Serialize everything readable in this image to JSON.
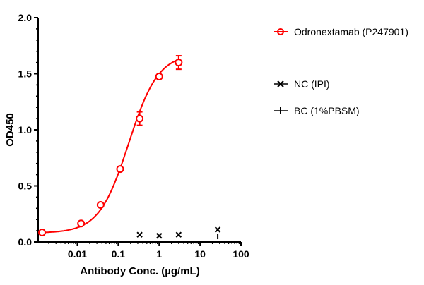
{
  "chart_data": {
    "type": "line",
    "xlabel": "Antibody Conc. (µg/mL)",
    "ylabel": "OD450",
    "xscale": "log",
    "xlim": [
      0.0011,
      100
    ],
    "ylim": [
      0,
      2.0
    ],
    "xticks": [
      "0.01",
      "0.1",
      "1",
      "10",
      "100"
    ],
    "xtick_values": [
      0.01,
      0.1,
      1,
      10,
      100
    ],
    "yticks": [
      "0.0",
      "0.5",
      "1.0",
      "1.5",
      "2.0"
    ],
    "ytick_values": [
      0,
      0.5,
      1.0,
      1.5,
      2.0
    ],
    "grid": false,
    "legend_position": "right",
    "series": [
      {
        "name": "Odronextamab (P247901)",
        "color": "#ff0000",
        "marker": "circle",
        "fit": "sigmoidal curve",
        "x": [
          0.00137,
          0.0123,
          0.037,
          0.111,
          0.333,
          1,
          3
        ],
        "y": [
          0.085,
          0.165,
          0.33,
          0.65,
          1.1,
          1.475,
          1.6
        ],
        "err": [
          0.01,
          0.01,
          0.01,
          0.01,
          0.06,
          0.02,
          0.06
        ]
      },
      {
        "name": "NC (IPI)",
        "color": "#000000",
        "marker": "x",
        "x": [
          0.333,
          1,
          3,
          27
        ],
        "y": [
          0.065,
          0.055,
          0.065,
          0.11
        ]
      },
      {
        "name": "BC (1%PBSM)",
        "color": "#000000",
        "marker": "plus",
        "x": [
          27
        ],
        "y": [
          0.05
        ]
      }
    ]
  }
}
